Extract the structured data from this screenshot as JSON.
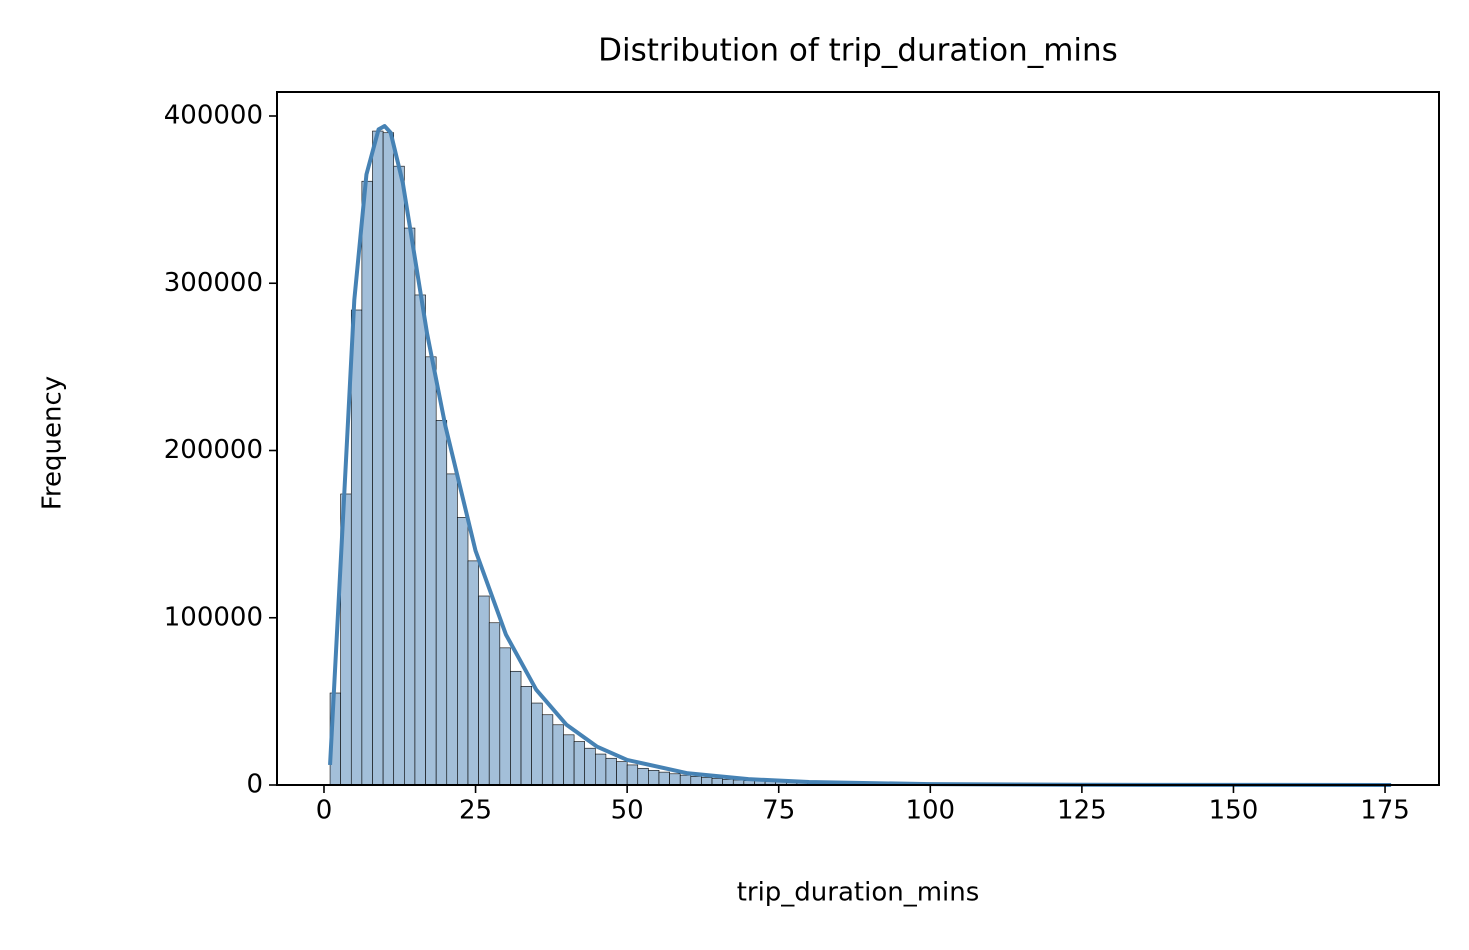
{
  "chart_data": {
    "type": "histogram",
    "title": "Distribution of trip_duration_mins",
    "xlabel": "trip_duration_mins",
    "ylabel": "Frequency",
    "bins": [
      1,
      2.75,
      4.5,
      6.25,
      8,
      9.75,
      11.5,
      13.25,
      15,
      16.75,
      18.5,
      20.25,
      22,
      23.75,
      25.5,
      27.25,
      29,
      30.75,
      32.5,
      34.25,
      36,
      37.75,
      39.5,
      41.25,
      43,
      44.75,
      46.5,
      48.25,
      50,
      51.75,
      53.5,
      55.25,
      57,
      58.75,
      60.5,
      62.25,
      64,
      65.75,
      67.5,
      69.25,
      71,
      72.75,
      74.5,
      76.25,
      78,
      79.75,
      81.5,
      83.25,
      85,
      86.75,
      88.5,
      90.25,
      92,
      93.75,
      95.5,
      97.25,
      99,
      100.75,
      102.5,
      104.25,
      106,
      107.75,
      109.5,
      111.25,
      113,
      114.75,
      116.5,
      118.25,
      120,
      121.75,
      123.5,
      125.25,
      127,
      128.75,
      130.5,
      132.25,
      134,
      135.75,
      137.5,
      139.25,
      141,
      142.75,
      144.5,
      146.25,
      148,
      149.75,
      151.5,
      153.25,
      155,
      156.75,
      158.5,
      160.25,
      162,
      163.75,
      165.5,
      167.25,
      169,
      170.75,
      172.5,
      174.25,
      176
    ],
    "values": [
      55000,
      174000,
      284000,
      361000,
      391000,
      390000,
      370000,
      333000,
      293000,
      256000,
      218000,
      186000,
      160000,
      134000,
      113000,
      97000,
      82000,
      68000,
      59000,
      49000,
      42000,
      36000,
      30000,
      26000,
      22000,
      18500,
      16000,
      14000,
      12000,
      10000,
      8800,
      7700,
      6700,
      5900,
      5200,
      4500,
      3900,
      3400,
      3000,
      2600,
      2300,
      2000,
      1750,
      1500,
      1300,
      1150,
      1000,
      870,
      760,
      660,
      580,
      500,
      440,
      380,
      330,
      290,
      250,
      220,
      190,
      165,
      145,
      125,
      110,
      95,
      83,
      72,
      63,
      55,
      48,
      42,
      36,
      31,
      27,
      24,
      21,
      18,
      16,
      14,
      12,
      10,
      9,
      8,
      7,
      6,
      5,
      5,
      4,
      4,
      3,
      3,
      3,
      2,
      2,
      2,
      2,
      1,
      1,
      1,
      1,
      1
    ],
    "color": "#a3bfd9",
    "edgecolor": "#000000",
    "kde": {
      "color": "#4682b4",
      "x": [
        1,
        3,
        5,
        7,
        9,
        10,
        11,
        13,
        15,
        17,
        20,
        25,
        30,
        35,
        40,
        45,
        50,
        60,
        70,
        80,
        100,
        125,
        150,
        176
      ],
      "values": [
        12000,
        150000,
        290000,
        365000,
        392000,
        394000,
        390000,
        360000,
        315000,
        270000,
        215000,
        140000,
        90000,
        57000,
        36000,
        23000,
        15000,
        7000,
        3500,
        1800,
        500,
        150,
        50,
        10
      ]
    },
    "xlim": [
      -7.75,
      183.9
    ],
    "ylim": [
      0,
      414350
    ],
    "xticks": [
      0,
      25,
      50,
      75,
      100,
      125,
      150,
      175
    ],
    "yticks": [
      0,
      100000,
      200000,
      300000,
      400000
    ]
  }
}
